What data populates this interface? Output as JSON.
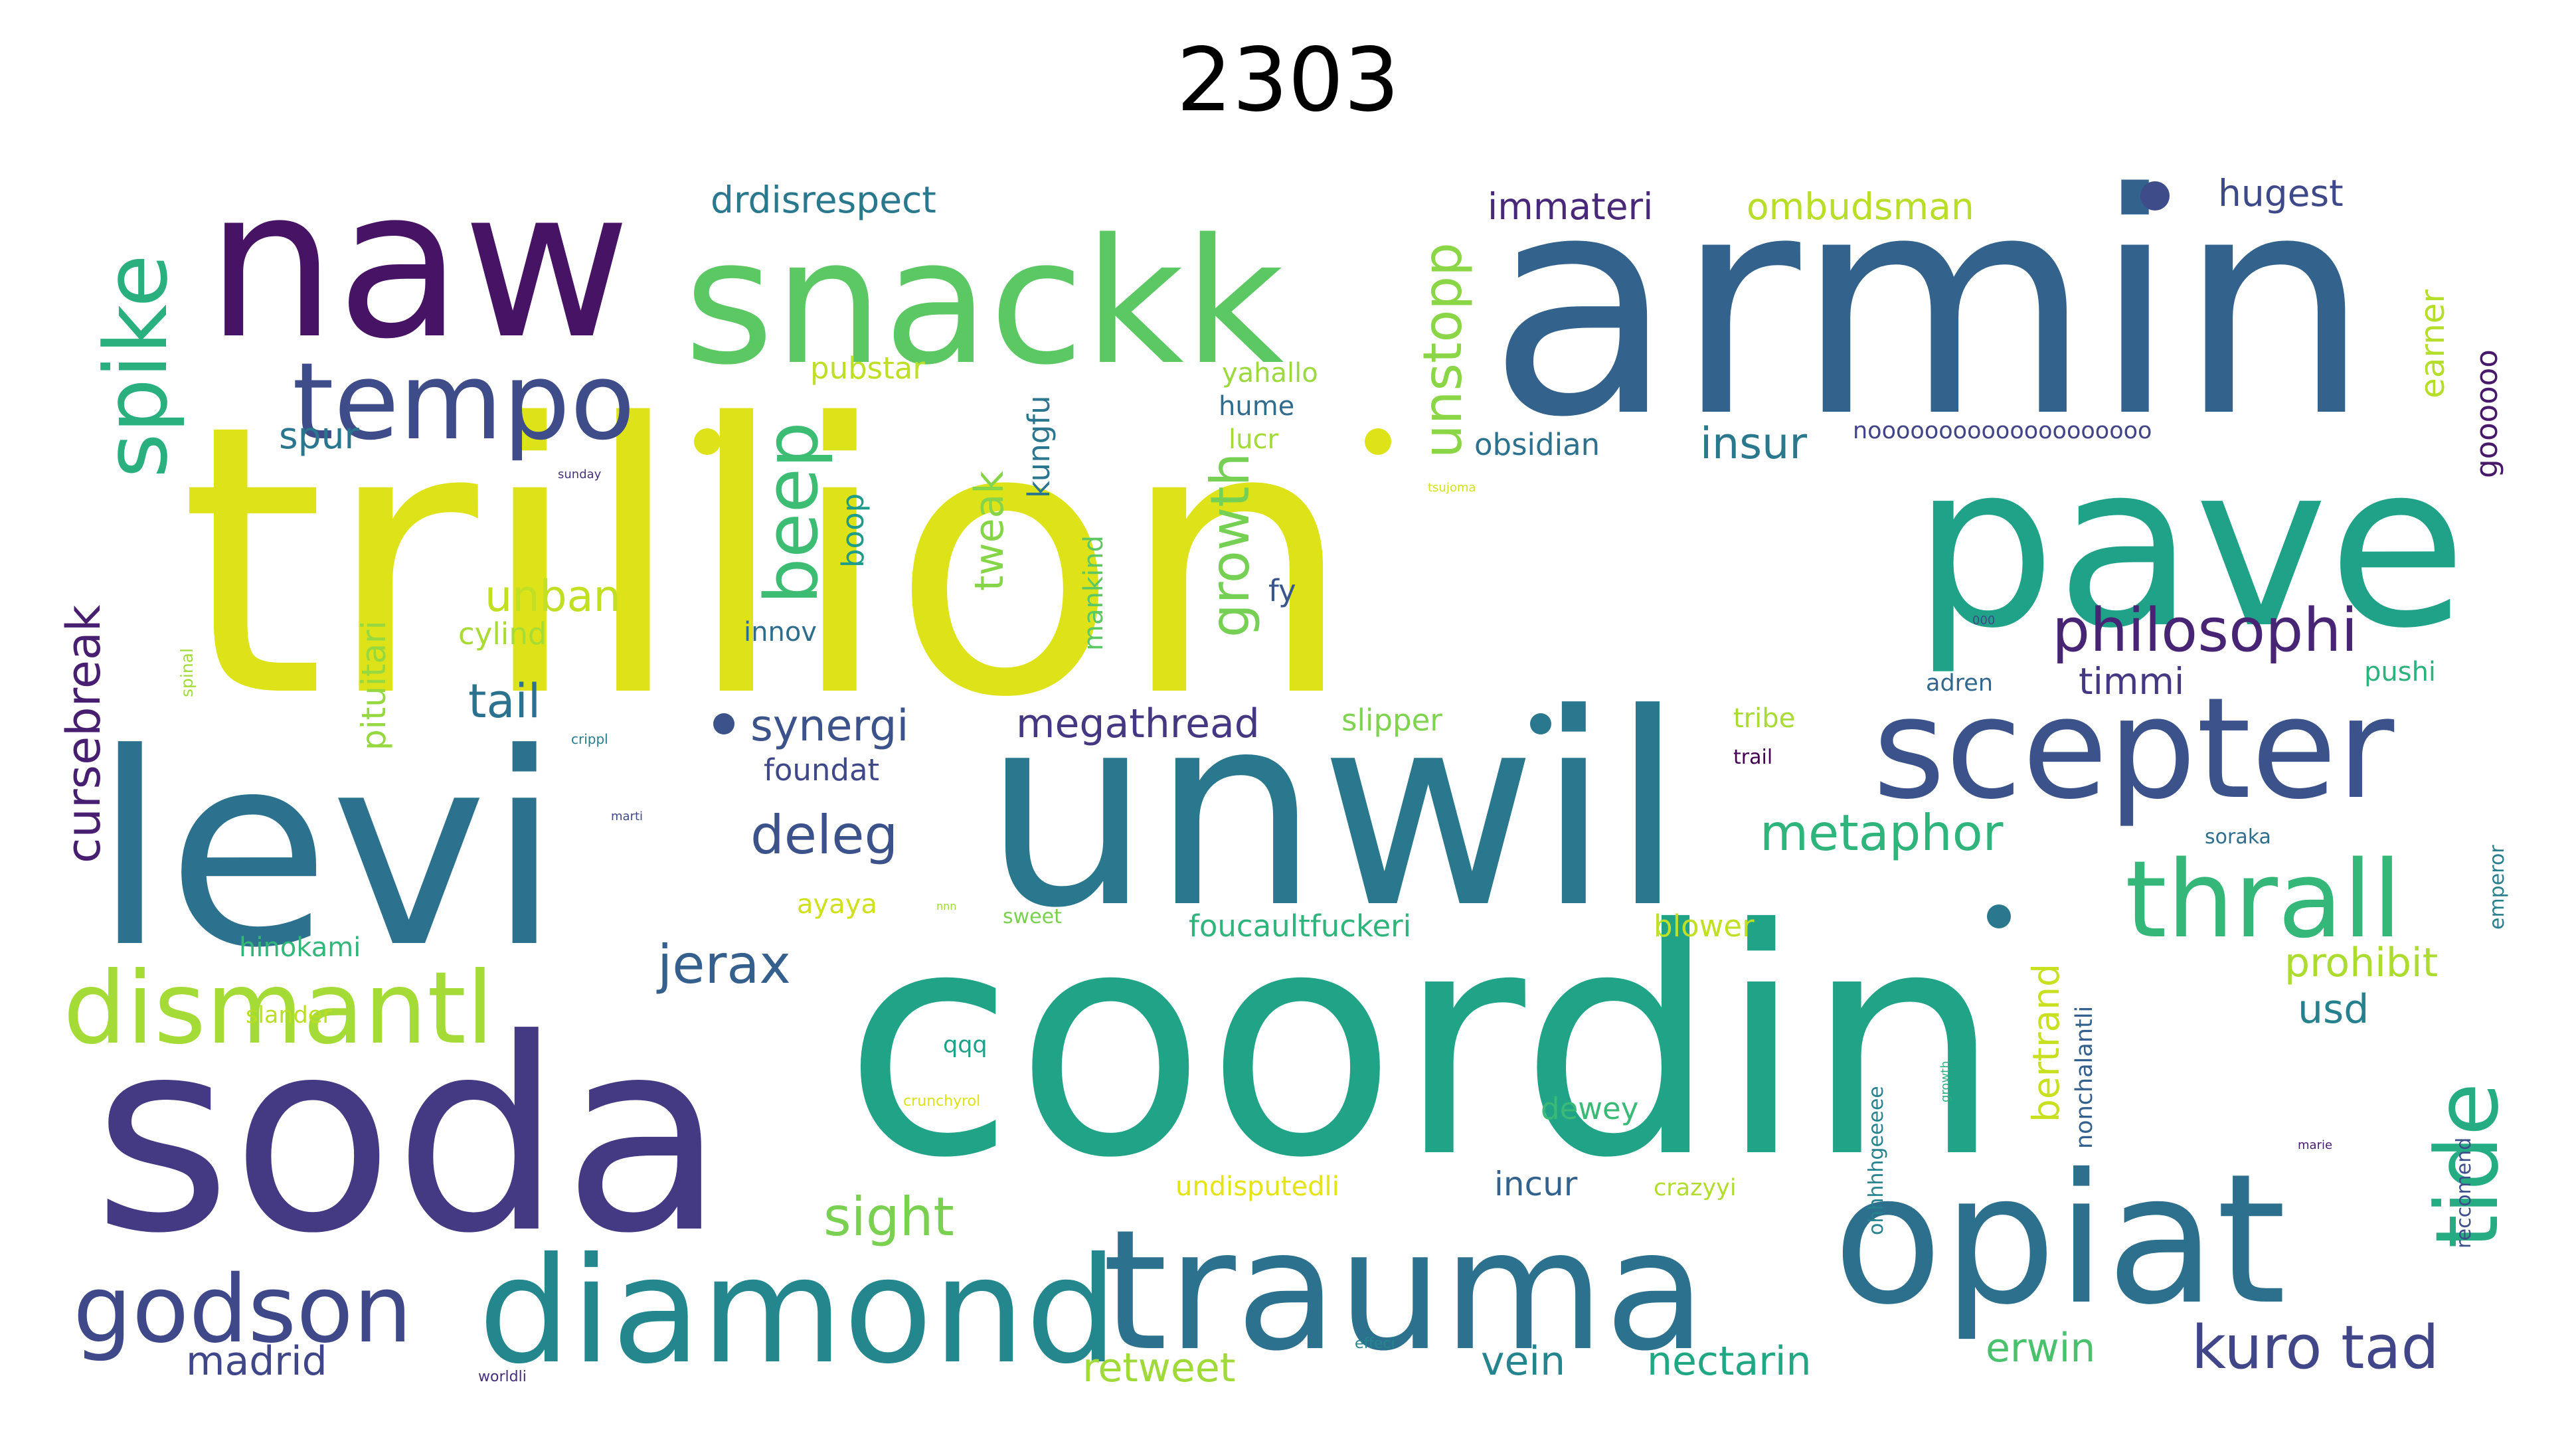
{
  "title": "2303",
  "words": [
    {
      "text": "trillion",
      "color": "#dde318"
    },
    {
      "text": "coordin",
      "color": "#20a386"
    },
    {
      "text": "armin",
      "color": "#33638d"
    },
    {
      "text": "soda",
      "color": "#443a83"
    },
    {
      "text": "levi",
      "color": "#2c728e"
    },
    {
      "text": "unwil",
      "color": "#2a788e"
    },
    {
      "text": "pave",
      "color": "#1fa287"
    },
    {
      "text": "naw",
      "color": "#471365"
    },
    {
      "text": "snackk",
      "color": "#5cc863"
    },
    {
      "text": "opiat",
      "color": "#2d708e"
    },
    {
      "text": "trauma",
      "color": "#2c718e"
    },
    {
      "text": "diamond",
      "color": "#24878e"
    },
    {
      "text": "scepter",
      "color": "#3b528b"
    },
    {
      "text": "tempo",
      "color": "#3e4c8a"
    },
    {
      "text": "thrall",
      "color": "#35b779"
    },
    {
      "text": "dismantl",
      "color": "#a5db36"
    },
    {
      "text": "godson",
      "color": "#3f4889"
    },
    {
      "text": "spike",
      "color": "#2ab07f"
    },
    {
      "text": "tide",
      "color": "#25ac82"
    },
    {
      "text": "beep",
      "color": "#3dbc74"
    },
    {
      "text": "philosophi",
      "color": "#482475"
    },
    {
      "text": "kuro tad",
      "color": "#404688"
    },
    {
      "text": "growth",
      "color": "#75d054"
    },
    {
      "text": "unstopp",
      "color": "#8bd646"
    },
    {
      "text": "metaphor",
      "color": "#2fb47c"
    },
    {
      "text": "deleg",
      "color": "#3b528b"
    },
    {
      "text": "jerax",
      "color": "#355f8d"
    },
    {
      "text": "cursebreak",
      "color": "#481f70"
    },
    {
      "text": "sight",
      "color": "#7ad151"
    },
    {
      "text": "synergi",
      "color": "#3b528b"
    },
    {
      "text": "megathread",
      "color": "#453781"
    },
    {
      "text": "prohibit",
      "color": "#addc30"
    },
    {
      "text": "tweak",
      "color": "#86d549"
    },
    {
      "text": "unban",
      "color": "#c2df23"
    },
    {
      "text": "tail",
      "color": "#2c728e"
    },
    {
      "text": "timmi",
      "color": "#453781"
    },
    {
      "text": "insur",
      "color": "#2a788e"
    },
    {
      "text": "drdisrespect",
      "color": "#2a788e"
    },
    {
      "text": "immateri",
      "color": "#482878"
    },
    {
      "text": "ombudsman",
      "color": "#b8de29"
    },
    {
      "text": "hugest",
      "color": "#3e4989"
    },
    {
      "text": "earner",
      "color": "#b5de2b"
    },
    {
      "text": "goooooo",
      "color": "#48186a"
    },
    {
      "text": "bertrand",
      "color": "#c8e020"
    },
    {
      "text": "retweet",
      "color": "#a0da39"
    },
    {
      "text": "vein",
      "color": "#25858e"
    },
    {
      "text": "nectarin",
      "color": "#22a785"
    },
    {
      "text": "erwin",
      "color": "#4ac16d"
    },
    {
      "text": "madrid",
      "color": "#3f4788"
    },
    {
      "text": "incur",
      "color": "#33638d"
    },
    {
      "text": "usd",
      "color": "#26818e"
    },
    {
      "text": "boop",
      "color": "#1e9c89"
    },
    {
      "text": "kungfu",
      "color": "#2a768e"
    },
    {
      "text": "pituitari",
      "color": "#95d840"
    },
    {
      "text": "spur",
      "color": "#2a768e"
    },
    {
      "text": "obsidian",
      "color": "#2c728e"
    },
    {
      "text": "pubstar",
      "color": "#bddf26"
    },
    {
      "text": "yahallo",
      "color": "#9bd93c"
    },
    {
      "text": "hume",
      "color": "#2f6c8e"
    },
    {
      "text": "lucr",
      "color": "#a2da37"
    },
    {
      "text": "cylind",
      "color": "#a8db34"
    },
    {
      "text": "innov",
      "color": "#2e6d8e"
    },
    {
      "text": "mankind",
      "color": "#5cc863"
    },
    {
      "text": "fy",
      "color": "#39568c"
    },
    {
      "text": "slipper",
      "color": "#7fd34e"
    },
    {
      "text": "foundat",
      "color": "#3f4889"
    },
    {
      "text": "foucaultfuckeri",
      "color": "#2fb47c"
    },
    {
      "text": "blower",
      "color": "#c0df25"
    },
    {
      "text": "hinokami",
      "color": "#32b67a"
    },
    {
      "text": "ayaya",
      "color": "#d0e11c"
    },
    {
      "text": "slander",
      "color": "#bade28"
    },
    {
      "text": "qqq",
      "color": "#1fa088"
    },
    {
      "text": "dewey",
      "color": "#3aba76"
    },
    {
      "text": "crazyyi",
      "color": "#b2dd2d"
    },
    {
      "text": "undisputedli",
      "color": "#e5e419"
    },
    {
      "text": "tribe",
      "color": "#a8db34"
    },
    {
      "text": "trail",
      "color": "#440154"
    },
    {
      "text": "adren",
      "color": "#31688e"
    },
    {
      "text": "pushi",
      "color": "#2db27d"
    },
    {
      "text": "soraka",
      "color": "#2e6f8e"
    },
    {
      "text": "nonchalantli",
      "color": "#34608d"
    },
    {
      "text": "ohhhhhgeeeee",
      "color": "#26828e"
    },
    {
      "text": "reccomend",
      "color": "#3c4f8a"
    },
    {
      "text": "emperor",
      "color": "#277f8e"
    },
    {
      "text": "noooooooooooooooooooo",
      "color": "#414487"
    },
    {
      "text": "spinal",
      "color": "#a2da37"
    },
    {
      "text": "crippl",
      "color": "#287c8e"
    },
    {
      "text": "marti",
      "color": "#3e4a89"
    },
    {
      "text": "sweet",
      "color": "#7ad151"
    },
    {
      "text": "crunchyrol",
      "color": "#dae319"
    },
    {
      "text": "effeci",
      "color": "#25858e"
    },
    {
      "text": "worldli",
      "color": "#472d7b"
    },
    {
      "text": "marie",
      "color": "#481b6d"
    },
    {
      "text": "growth",
      "color": "#2ab07f"
    },
    {
      "text": "sunday",
      "color": "#46327e"
    },
    {
      "text": "tsujoma",
      "color": "#d2e21b"
    },
    {
      "text": "000",
      "color": "#3e4a89"
    },
    {
      "text": "nnn",
      "color": "#9fda3a"
    }
  ]
}
